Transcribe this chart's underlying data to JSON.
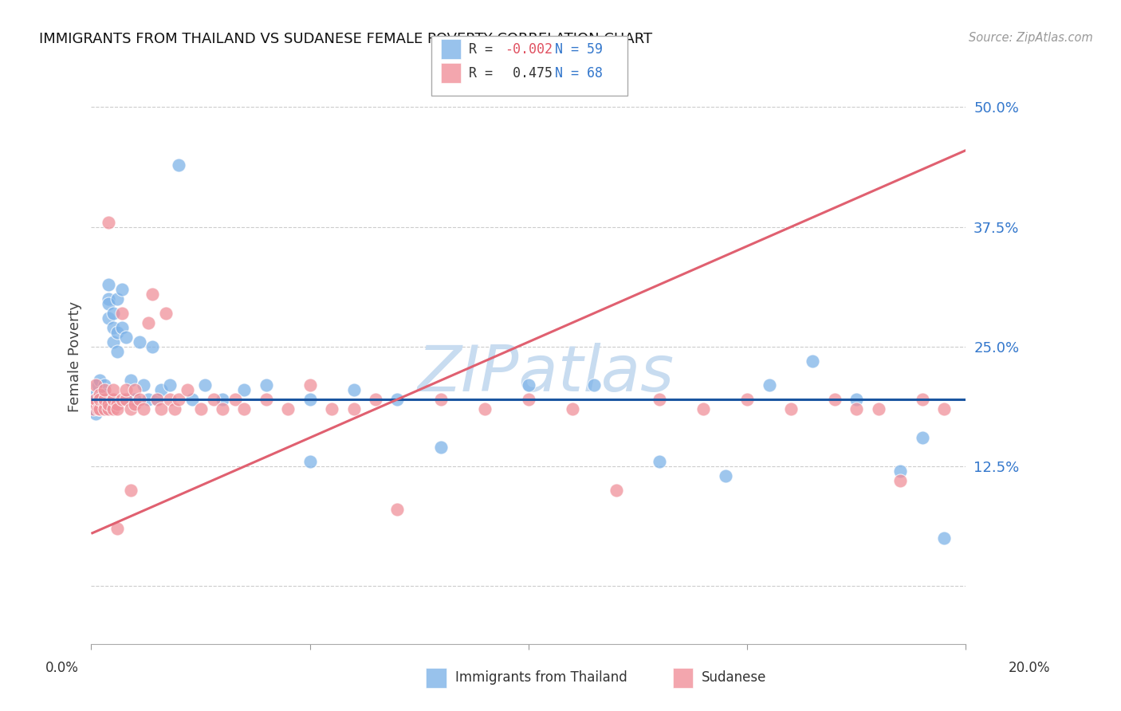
{
  "title": "IMMIGRANTS FROM THAILAND VS SUDANESE FEMALE POVERTY CORRELATION CHART",
  "source": "Source: ZipAtlas.com",
  "ylabel": "Female Poverty",
  "yticks": [
    0.0,
    0.125,
    0.25,
    0.375,
    0.5
  ],
  "ytick_labels": [
    "",
    "12.5%",
    "25.0%",
    "37.5%",
    "50.0%"
  ],
  "xlim": [
    0.0,
    0.2
  ],
  "ylim": [
    -0.06,
    0.54
  ],
  "blue_color": "#7EB3E8",
  "pink_color": "#F0909A",
  "blue_line_color": "#1A55A0",
  "pink_line_color": "#E06070",
  "watermark_color": "#C8DCF0",
  "background_color": "#FFFFFF",
  "grid_color": "#CCCCCC",
  "blue_line_y0": 0.195,
  "blue_line_y1": 0.195,
  "pink_line_y0": 0.055,
  "pink_line_y1": 0.455,
  "blue_scatter_x": [
    0.0005,
    0.001,
    0.001,
    0.001,
    0.0015,
    0.002,
    0.002,
    0.002,
    0.002,
    0.0025,
    0.003,
    0.003,
    0.003,
    0.003,
    0.003,
    0.004,
    0.004,
    0.004,
    0.004,
    0.005,
    0.005,
    0.005,
    0.006,
    0.006,
    0.006,
    0.007,
    0.007,
    0.008,
    0.008,
    0.009,
    0.01,
    0.011,
    0.012,
    0.013,
    0.014,
    0.015,
    0.016,
    0.018,
    0.02,
    0.023,
    0.026,
    0.03,
    0.035,
    0.04,
    0.05,
    0.06,
    0.07,
    0.08,
    0.1,
    0.115,
    0.13,
    0.145,
    0.155,
    0.165,
    0.175,
    0.185,
    0.19,
    0.195,
    0.05
  ],
  "blue_scatter_y": [
    0.185,
    0.2,
    0.18,
    0.195,
    0.21,
    0.195,
    0.185,
    0.2,
    0.215,
    0.2,
    0.195,
    0.185,
    0.21,
    0.2,
    0.19,
    0.3,
    0.28,
    0.295,
    0.315,
    0.255,
    0.27,
    0.285,
    0.3,
    0.265,
    0.245,
    0.31,
    0.27,
    0.26,
    0.195,
    0.215,
    0.195,
    0.255,
    0.21,
    0.195,
    0.25,
    0.195,
    0.205,
    0.21,
    0.44,
    0.195,
    0.21,
    0.195,
    0.205,
    0.21,
    0.13,
    0.205,
    0.195,
    0.145,
    0.21,
    0.21,
    0.13,
    0.115,
    0.21,
    0.235,
    0.195,
    0.12,
    0.155,
    0.05,
    0.195
  ],
  "pink_scatter_x": [
    0.0005,
    0.001,
    0.001,
    0.001,
    0.0015,
    0.002,
    0.002,
    0.002,
    0.003,
    0.003,
    0.003,
    0.003,
    0.004,
    0.004,
    0.004,
    0.005,
    0.005,
    0.005,
    0.005,
    0.006,
    0.006,
    0.006,
    0.007,
    0.007,
    0.008,
    0.008,
    0.009,
    0.009,
    0.01,
    0.01,
    0.011,
    0.012,
    0.013,
    0.014,
    0.015,
    0.016,
    0.017,
    0.018,
    0.019,
    0.02,
    0.022,
    0.025,
    0.028,
    0.03,
    0.033,
    0.035,
    0.04,
    0.045,
    0.05,
    0.055,
    0.06,
    0.065,
    0.07,
    0.08,
    0.09,
    0.1,
    0.11,
    0.12,
    0.13,
    0.14,
    0.15,
    0.16,
    0.17,
    0.175,
    0.18,
    0.185,
    0.19,
    0.195
  ],
  "pink_scatter_y": [
    0.185,
    0.19,
    0.21,
    0.195,
    0.185,
    0.2,
    0.185,
    0.195,
    0.19,
    0.185,
    0.195,
    0.205,
    0.38,
    0.185,
    0.19,
    0.195,
    0.185,
    0.195,
    0.205,
    0.19,
    0.06,
    0.185,
    0.285,
    0.195,
    0.195,
    0.205,
    0.185,
    0.1,
    0.19,
    0.205,
    0.195,
    0.185,
    0.275,
    0.305,
    0.195,
    0.185,
    0.285,
    0.195,
    0.185,
    0.195,
    0.205,
    0.185,
    0.195,
    0.185,
    0.195,
    0.185,
    0.195,
    0.185,
    0.21,
    0.185,
    0.185,
    0.195,
    0.08,
    0.195,
    0.185,
    0.195,
    0.185,
    0.1,
    0.195,
    0.185,
    0.195,
    0.185,
    0.195,
    0.185,
    0.185,
    0.11,
    0.195,
    0.185
  ]
}
